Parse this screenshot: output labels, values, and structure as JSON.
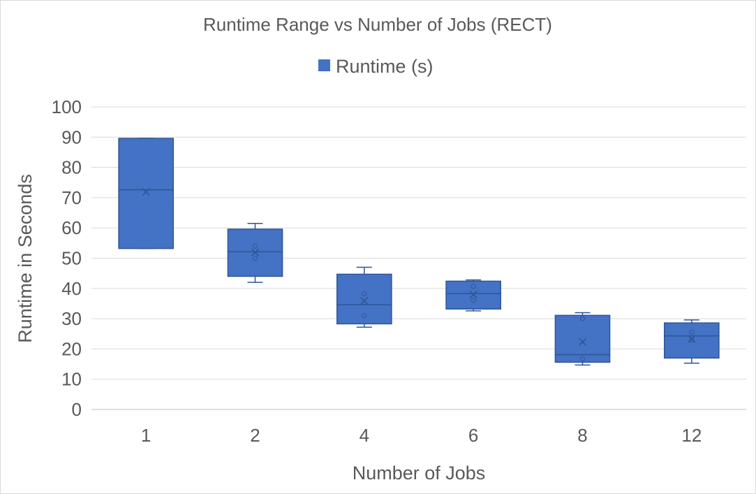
{
  "chart_data": {
    "type": "box",
    "title": "Runtime Range vs Number of Jobs (RECT)",
    "xlabel": "Number of Jobs",
    "ylabel": "Runtime in Seconds",
    "ylim": [
      0,
      100
    ],
    "yticks": [
      "0",
      "10",
      "20",
      "30",
      "40",
      "50",
      "60",
      "70",
      "80",
      "90",
      "100"
    ],
    "grid": true,
    "legend_position": "top",
    "categories": [
      "1",
      "2",
      "4",
      "6",
      "8",
      "12"
    ],
    "series": [
      {
        "name": "Runtime (s)",
        "color": "#4472c4",
        "edge_color": "#2f5597",
        "boxes": [
          {
            "min": 53.2,
            "q1": 53.2,
            "median": 72.6,
            "q3": 89.6,
            "max": 89.6,
            "mean": 71.9,
            "points": []
          },
          {
            "min": 42.0,
            "q1": 44.0,
            "median": 52.1,
            "q3": 59.6,
            "max": 61.5,
            "mean": 51.9,
            "points": [
              54.0,
              50.0
            ]
          },
          {
            "min": 27.2,
            "q1": 28.3,
            "median": 34.6,
            "q3": 44.7,
            "max": 47.0,
            "mean": 35.9,
            "points": [
              38.2,
              31.0
            ]
          },
          {
            "min": 32.6,
            "q1": 33.2,
            "median": 38.3,
            "q3": 42.4,
            "max": 42.8,
            "mean": 38.0,
            "points": [
              40.7,
              36.1
            ]
          },
          {
            "min": 14.7,
            "q1": 15.6,
            "median": 18.1,
            "q3": 31.1,
            "max": 32.0,
            "mean": 22.3,
            "points": [
              30.0,
              16.7
            ]
          },
          {
            "min": 15.3,
            "q1": 17.0,
            "median": 24.3,
            "q3": 28.6,
            "max": 29.6,
            "mean": 23.3,
            "points": [
              25.5,
              23.0
            ]
          }
        ]
      }
    ]
  }
}
